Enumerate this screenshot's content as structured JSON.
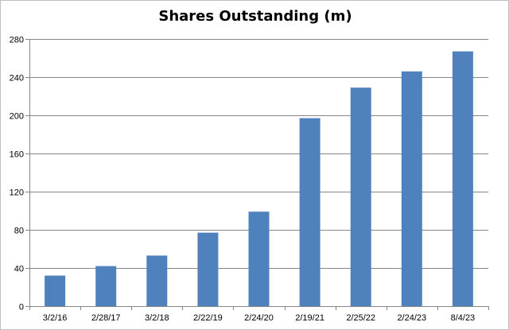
{
  "chart_data": {
    "type": "bar",
    "title": "Shares Outstanding (m)",
    "xlabel": "",
    "ylabel": "",
    "categories": [
      "3/2/16",
      "2/28/17",
      "3/2/18",
      "2/22/19",
      "2/24/20",
      "2/19/21",
      "2/25/22",
      "2/24/23",
      "8/4/23"
    ],
    "values": [
      32,
      42,
      53,
      77,
      99,
      197,
      229,
      246,
      267
    ],
    "ylim": [
      0,
      280
    ],
    "yticks": [
      0,
      40,
      80,
      120,
      160,
      200,
      240,
      280
    ],
    "grid": true,
    "legend": "none",
    "bar_color": "#4f81bd",
    "grid_color": "#868686"
  }
}
